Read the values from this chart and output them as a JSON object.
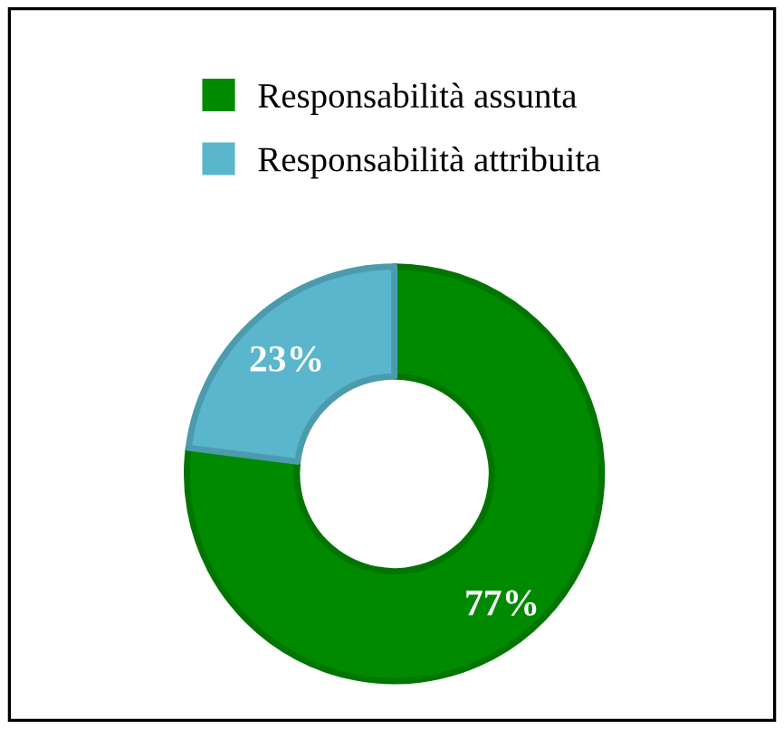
{
  "chart_data": {
    "type": "donut",
    "categories": [
      "Responsabilità assunta",
      "Responsabilità attribuita"
    ],
    "values": [
      77,
      23
    ],
    "colors": [
      "#008a00",
      "#5ab6cc"
    ],
    "value_labels": [
      "77%",
      "23%"
    ],
    "legend": "top"
  }
}
